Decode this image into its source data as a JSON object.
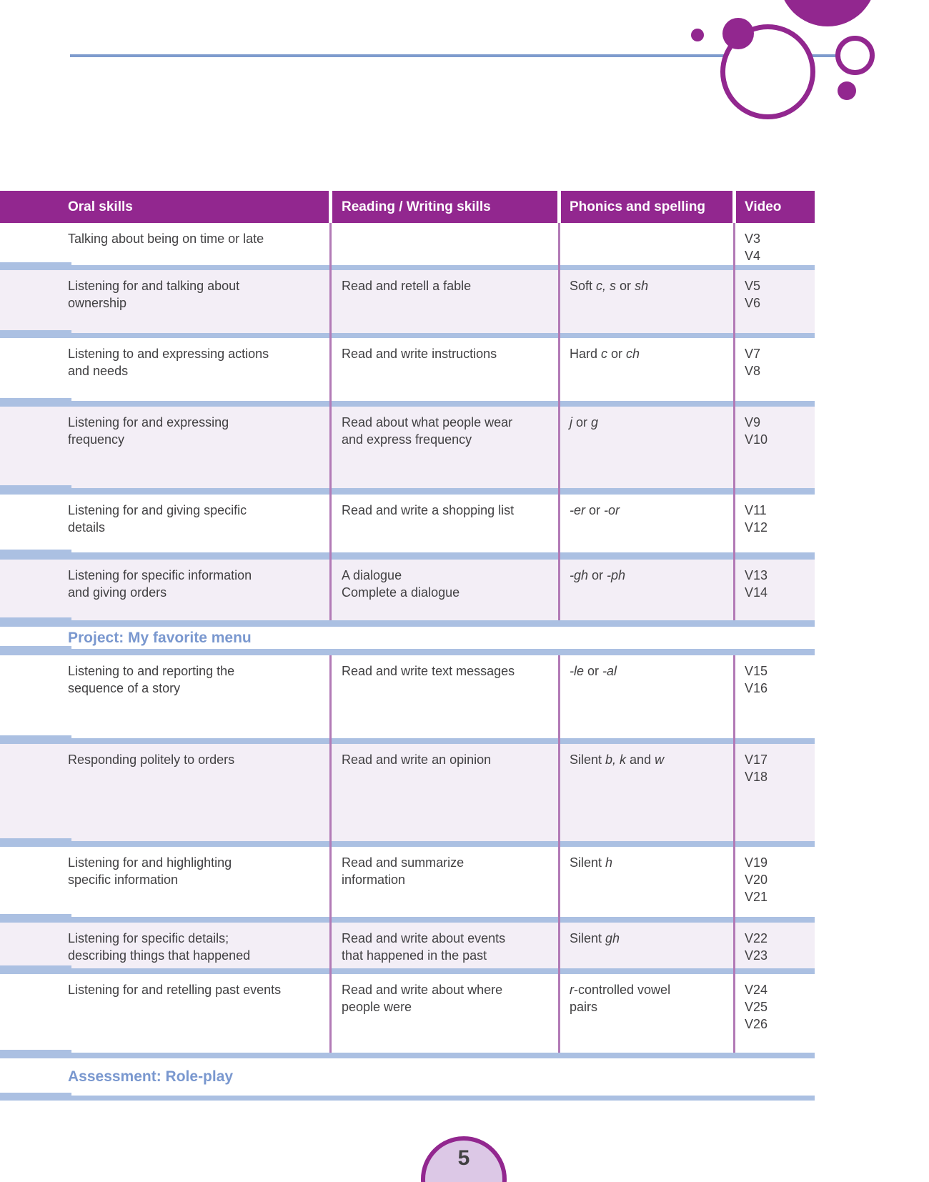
{
  "colors": {
    "brand_purple": "#92278f",
    "divider_orchid": "#b27ab6",
    "separator_blue": "#abc0e2",
    "rule_blue": "#7e9bcd",
    "band_text_blue": "#7a98cf",
    "row_tint": "#f3eef6",
    "body_text": "#414042",
    "page_circle_fill": "#dcc8e6"
  },
  "page": {
    "number": "5"
  },
  "table": {
    "columns": [
      "Oral skills",
      "Reading / Writing skills",
      "Phonics and spelling",
      "Video"
    ]
  },
  "bands": {
    "project": "Project: My favorite menu",
    "assessment": "Assessment: Role-play"
  },
  "rows": [
    {
      "oral": "Talking about being on time or late",
      "reading": "",
      "phonics": [],
      "videos": [
        "V3",
        "V4"
      ]
    },
    {
      "oral": "Listening for and talking about\nownership",
      "reading": "Read and retell a fable",
      "phonics": [
        [
          "Soft ",
          0
        ],
        [
          "c, s",
          1
        ],
        [
          " or ",
          0
        ],
        [
          "sh",
          1
        ]
      ],
      "videos": [
        "V5",
        "V6"
      ]
    },
    {
      "oral": "Listening to and expressing actions\nand needs",
      "reading": "Read and write instructions",
      "phonics": [
        [
          "Hard ",
          0
        ],
        [
          "c",
          1
        ],
        [
          " or ",
          0
        ],
        [
          "ch",
          1
        ]
      ],
      "videos": [
        "V7",
        "V8"
      ]
    },
    {
      "oral": "Listening for and expressing\nfrequency",
      "reading": "Read about what people wear\nand express frequency",
      "phonics": [
        [
          "j",
          1
        ],
        [
          " or ",
          0
        ],
        [
          "g",
          1
        ]
      ],
      "videos": [
        "V9",
        "V10"
      ]
    },
    {
      "oral": "Listening for and giving specific\ndetails",
      "reading": "Read and write a shopping list",
      "phonics": [
        [
          "-er",
          1
        ],
        [
          " or ",
          0
        ],
        [
          "-or",
          1
        ]
      ],
      "videos": [
        "V11",
        "V12"
      ]
    },
    {
      "oral": "Listening for specific information\nand giving orders",
      "reading": "A dialogue\nComplete a dialogue",
      "phonics": [
        [
          "-gh",
          1
        ],
        [
          " or ",
          0
        ],
        [
          "-ph",
          1
        ]
      ],
      "videos": [
        "V13",
        "V14"
      ]
    },
    {
      "oral": "Listening to and reporting the\nsequence of a story",
      "reading": "Read and write text messages",
      "phonics": [
        [
          "-le",
          1
        ],
        [
          " or ",
          0
        ],
        [
          "-al",
          1
        ]
      ],
      "videos": [
        "V15",
        "V16"
      ]
    },
    {
      "oral": "Responding politely to orders",
      "reading": "Read and write an opinion",
      "phonics": [
        [
          "Silent ",
          0
        ],
        [
          "b, k",
          1
        ],
        [
          " and ",
          0
        ],
        [
          "w",
          1
        ]
      ],
      "videos": [
        "V17",
        "V18"
      ]
    },
    {
      "oral": "Listening for and highlighting\nspecific information",
      "reading": "Read and summarize\ninformation",
      "phonics": [
        [
          "Silent ",
          0
        ],
        [
          "h",
          1
        ]
      ],
      "videos": [
        "V19",
        "V20",
        "V21"
      ]
    },
    {
      "oral": "Listening for specific details;\ndescribing things that happened",
      "reading": "Read and write about events\nthat happened in the past",
      "phonics": [
        [
          "Silent ",
          0
        ],
        [
          "gh",
          1
        ]
      ],
      "videos": [
        "V22",
        "V23"
      ]
    },
    {
      "oral": "Listening for and retelling past events",
      "reading": "Read and write about where\npeople were",
      "phonics": [
        [
          "r",
          1
        ],
        [
          "-controlled vowel\npairs",
          0
        ]
      ],
      "videos": [
        "V24",
        "V25",
        "V26"
      ]
    }
  ]
}
